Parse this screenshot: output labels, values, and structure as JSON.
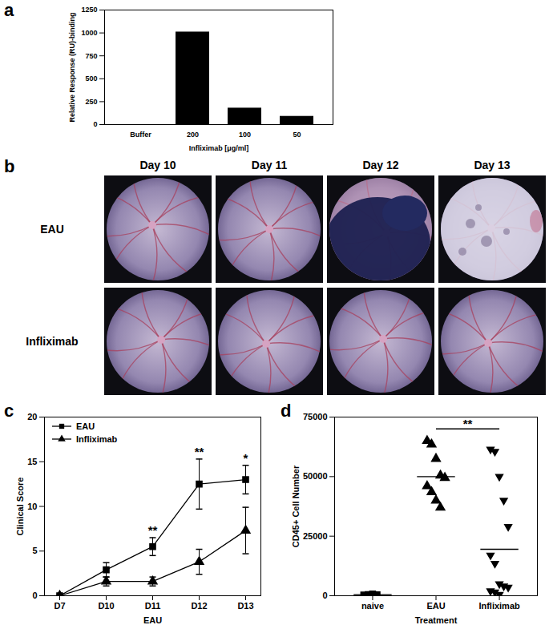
{
  "chart_data": [
    {
      "panel": "a",
      "type": "bar",
      "categories": [
        "Buffer",
        "200",
        "100",
        "50"
      ],
      "values": [
        0,
        1010,
        180,
        90
      ],
      "color": "#000000",
      "x_label": "Infliximab [μg/ml]",
      "y_label": "Relative Response (RU)-binding",
      "ylim": [
        0,
        1250
      ],
      "yticks": [
        0,
        250,
        500,
        750,
        1000,
        1250
      ]
    },
    {
      "panel": "b",
      "type": "image_grid",
      "columns": [
        "Day 10",
        "Day 11",
        "Day 12",
        "Day 13"
      ],
      "rows": [
        "EAU",
        "Infliximab"
      ]
    },
    {
      "panel": "c",
      "type": "line",
      "categories": [
        "D7",
        "D10",
        "D11",
        "D12",
        "D13"
      ],
      "x_label": "EAU",
      "y_label": "Clinical Score",
      "ylim": [
        0,
        20
      ],
      "yticks": [
        0,
        5,
        10,
        15,
        20
      ],
      "legend": "top-left",
      "series": [
        {
          "name": "EAU",
          "color": "#000000",
          "marker": "square",
          "values": [
            0,
            2.9,
            5.5,
            12.5,
            13.0
          ],
          "errors": [
            0,
            0.8,
            1.0,
            2.8,
            1.6
          ]
        },
        {
          "name": "Infliximab",
          "color": "#000000",
          "marker": "triangle",
          "values": [
            0,
            1.6,
            1.6,
            3.8,
            7.3
          ],
          "errors": [
            0,
            0.5,
            0.5,
            1.4,
            2.6
          ]
        }
      ],
      "annotations": [
        {
          "x": "D11",
          "text": "**"
        },
        {
          "x": "D12",
          "text": "**"
        },
        {
          "x": "D13",
          "text": "*"
        }
      ]
    },
    {
      "panel": "d",
      "type": "scatter",
      "categories": [
        "naive",
        "EAU",
        "Infliximab"
      ],
      "x_label": "Treatment",
      "y_label": "CD45+ Cell Number",
      "ylim": [
        0,
        75000
      ],
      "yticks": [
        0,
        25000,
        50000,
        75000
      ],
      "color": "#000000",
      "groups": [
        {
          "marker": "square",
          "values": [
            300,
            500,
            700,
            400
          ],
          "center_line": 450
        },
        {
          "marker": "triangle",
          "values": [
            65000,
            63500,
            57500,
            50500,
            49500,
            46000,
            43500,
            40000,
            37000
          ],
          "center_line": 50000
        },
        {
          "marker": "triangle-down",
          "values": [
            61500,
            60500,
            50000,
            40000,
            29000,
            17000,
            13500,
            5000,
            4000,
            3500,
            2000,
            1500,
            500
          ],
          "center_line": 19500
        }
      ],
      "annotations": [
        {
          "from": "EAU",
          "to": "Infliximab",
          "y": 70000,
          "text": "**"
        }
      ]
    }
  ]
}
